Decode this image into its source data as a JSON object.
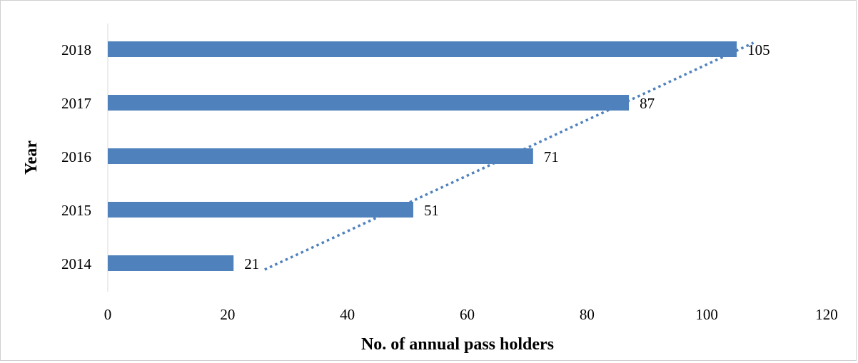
{
  "chart_data": {
    "type": "bar",
    "orientation": "horizontal",
    "categories": [
      "2014",
      "2015",
      "2016",
      "2017",
      "2018"
    ],
    "values": [
      21,
      51,
      71,
      87,
      105
    ],
    "data_labels": [
      "21",
      "51",
      "71",
      "87",
      "105"
    ],
    "xlabel": "No. of annual pass holders",
    "ylabel": "Year",
    "xlim": [
      0,
      120
    ],
    "xticks": [
      "0",
      "20",
      "40",
      "60",
      "80",
      "100",
      "120"
    ],
    "grid": false,
    "legend": "none",
    "trendline": {
      "type": "linear",
      "style": "dotted"
    },
    "colors": {
      "bar": "#4F81BD",
      "trendline": "#4F81BD",
      "axis": "#d9d9d9"
    }
  }
}
